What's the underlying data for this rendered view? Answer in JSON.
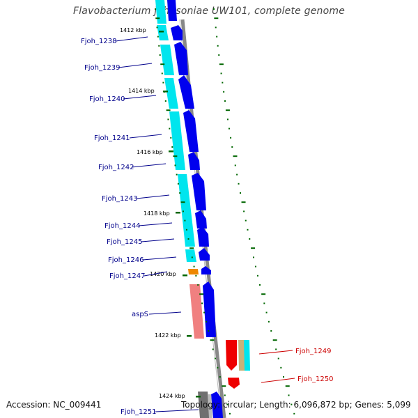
{
  "title": "Flavobacterium johnsoniae UW101, complete genome",
  "accession": "Accession: NC_009441",
  "topology": "Topology: circular; Length: 6,096,872 bp; Genes: 5,099",
  "colors": {
    "cds": "#0000ee",
    "cds_light": "#00e5ee",
    "trna": "#f08080",
    "red_gene": "#ee0000",
    "orange_gene": "#ee8800",
    "tan_gene": "#c8b27a",
    "grey_gene": "#707070",
    "backbone": "#808080",
    "tick": "#006600",
    "left_label": "#00008b",
    "right_label": "#cc0000"
  },
  "kbp_ticks": [
    "1412 kbp",
    "1414 kbp",
    "1416 kbp",
    "1418 kbp",
    "1420 kbp",
    "1422 kbp",
    "1424 kbp"
  ],
  "left_genes": [
    {
      "label": "Fjoh_1238"
    },
    {
      "label": "Fjoh_1239"
    },
    {
      "label": "Fjoh_1240"
    },
    {
      "label": "Fjoh_1241"
    },
    {
      "label": "Fjoh_1242"
    },
    {
      "label": "Fjoh_1243"
    },
    {
      "label": "Fjoh_1244"
    },
    {
      "label": "Fjoh_1245"
    },
    {
      "label": "Fjoh_1246"
    },
    {
      "label": "Fjoh_1247"
    },
    {
      "label": "aspS"
    },
    {
      "label": "Fjoh_1251"
    }
  ],
  "right_genes": [
    {
      "label": "Fjoh_1249"
    },
    {
      "label": "Fjoh_1250"
    }
  ]
}
